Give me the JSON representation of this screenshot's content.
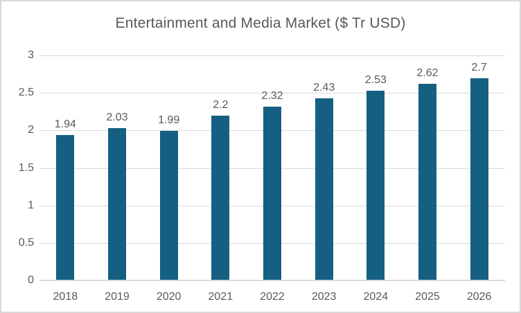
{
  "title": "Entertainment and Media Market ($ Tr USD)",
  "colors": {
    "bar": "#156082",
    "grid": "#d9d9d9",
    "axis": "#d9d9d9",
    "text": "#595959",
    "frame_border": "#d9d9d9",
    "background": "#ffffff"
  },
  "chart_data": {
    "type": "bar",
    "title": "Entertainment and Media Market ($ Tr USD)",
    "categories": [
      "2018",
      "2019",
      "2020",
      "2021",
      "2022",
      "2023",
      "2024",
      "2025",
      "2026"
    ],
    "values": [
      1.94,
      2.03,
      1.99,
      2.2,
      2.32,
      2.43,
      2.53,
      2.62,
      2.7
    ],
    "value_labels": [
      "1.94",
      "2.03",
      "1.99",
      "2.2",
      "2.32",
      "2.43",
      "2.53",
      "2.62",
      "2.7"
    ],
    "xlabel": "",
    "ylabel": "",
    "ylim": [
      0,
      3
    ],
    "ytick_step": 0.5,
    "ytick_labels": [
      "0",
      "0.5",
      "1",
      "1.5",
      "2",
      "2.5",
      "3"
    ],
    "grid": true,
    "legend": false,
    "series_count": 1
  }
}
